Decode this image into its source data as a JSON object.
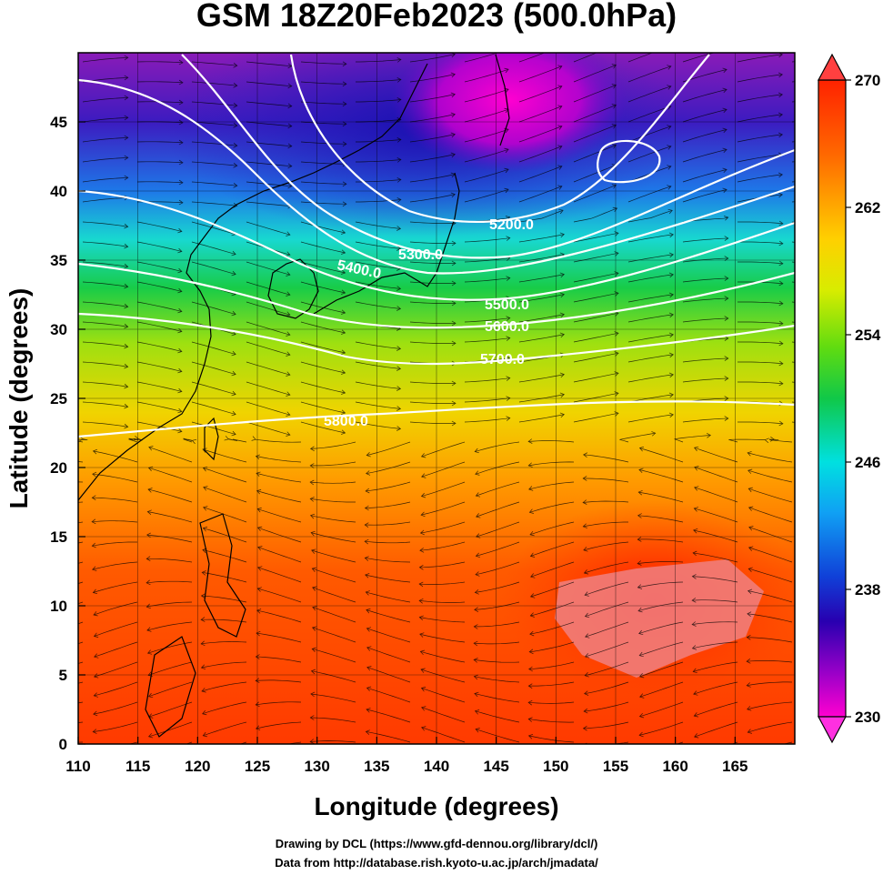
{
  "title": "GSM 18Z20Feb2023 (500.0hPa)",
  "xlabel": "Longitude (degrees)",
  "ylabel": "Latitude  (degrees)",
  "credits": {
    "line1": "Drawing by DCL (https://www.gfd-dennou.org/library/dcl/)",
    "line2": "Data from http://database.rish.kyoto-u.ac.jp/arch/jmadata/"
  },
  "map_data": {
    "type": "heatmap",
    "field": "temperature",
    "xlim": [
      110,
      170
    ],
    "ylim": [
      0,
      50
    ],
    "x_ticks": [
      110,
      115,
      120,
      125,
      130,
      135,
      140,
      145,
      150,
      155,
      160,
      165
    ],
    "y_ticks": [
      0,
      5,
      10,
      15,
      20,
      25,
      30,
      35,
      40,
      45
    ],
    "colorbar": {
      "min": 230,
      "max": 270,
      "tick_labels": [
        "270",
        "262",
        "254",
        "246",
        "238",
        "230"
      ],
      "tick_values": [
        270,
        262,
        254,
        246,
        238,
        230
      ],
      "colors": [
        "#ff00d0",
        "#7a00c8",
        "#2b00b8",
        "#0b3fd8",
        "#1ea0f4",
        "#00e4e0",
        "#10cc48",
        "#70e010",
        "#e6ec00",
        "#ffb000",
        "#ff6a00",
        "#ff2a00"
      ]
    },
    "contours": {
      "color": "#ffffff",
      "labels": [
        "5200.0",
        "5300.0",
        "5400.0",
        "5500.0",
        "5600.0",
        "5700.0",
        "5800.0"
      ]
    },
    "streamlines": true,
    "grid": true
  }
}
